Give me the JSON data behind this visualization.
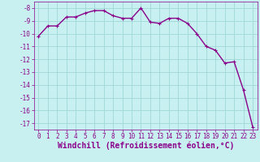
{
  "x": [
    0,
    1,
    2,
    3,
    4,
    5,
    6,
    7,
    8,
    9,
    10,
    11,
    12,
    13,
    14,
    15,
    16,
    17,
    18,
    19,
    20,
    21,
    22,
    23
  ],
  "y": [
    -10.2,
    -9.4,
    -9.4,
    -8.7,
    -8.7,
    -8.4,
    -8.2,
    -8.2,
    -8.6,
    -8.8,
    -8.8,
    -8.0,
    -9.1,
    -9.2,
    -8.8,
    -8.8,
    -9.2,
    -10.0,
    -11.0,
    -11.3,
    -12.3,
    -12.2,
    -14.4,
    -17.3
  ],
  "line_color": "#8b008b",
  "marker": "+",
  "marker_size": 3,
  "bg_color": "#c8f0f0",
  "grid_color": "#a0d8d8",
  "xlabel": "Windchill (Refroidissement éolien,°C)",
  "ylim": [
    -17.5,
    -7.5
  ],
  "xlim": [
    -0.5,
    23.5
  ],
  "yticks": [
    -8,
    -9,
    -10,
    -11,
    -12,
    -13,
    -14,
    -15,
    -16,
    -17
  ],
  "xticks": [
    0,
    1,
    2,
    3,
    4,
    5,
    6,
    7,
    8,
    9,
    10,
    11,
    12,
    13,
    14,
    15,
    16,
    17,
    18,
    19,
    20,
    21,
    22,
    23
  ],
  "tick_fontsize": 5.5,
  "xlabel_fontsize": 7.0,
  "line_width": 1.0
}
